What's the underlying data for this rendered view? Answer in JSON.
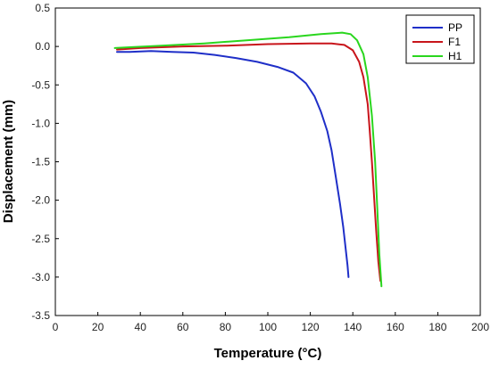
{
  "chart_data": {
    "type": "line",
    "title": "",
    "xlabel": "Temperature (°C)",
    "ylabel": "Displacement (mm)",
    "xlim": [
      0,
      200
    ],
    "ylim": [
      -3.5,
      0.5
    ],
    "x_ticks": [
      0,
      20,
      40,
      60,
      80,
      100,
      120,
      140,
      160,
      180,
      200
    ],
    "y_ticks": [
      0.5,
      0.0,
      -0.5,
      -1.0,
      -1.5,
      -2.0,
      -2.5,
      -3.0,
      -3.5
    ],
    "x_tick_labels": [
      "0",
      "20",
      "40",
      "60",
      "80",
      "100",
      "120",
      "140",
      "160",
      "180",
      "200"
    ],
    "y_tick_labels": [
      "0.5",
      "0.0",
      "-0.5",
      "-1.0",
      "-1.5",
      "-2.0",
      "-2.5",
      "-3.0",
      "-3.5"
    ],
    "grid": false,
    "legend_position": "top-right",
    "series": [
      {
        "name": "PP",
        "color": "#1f2fc8",
        "x": [
          29,
          35,
          45,
          55,
          65,
          75,
          85,
          95,
          105,
          112,
          118,
          122,
          125,
          128,
          130,
          132,
          134,
          135.5,
          136.5,
          137.5,
          138
        ],
        "y": [
          -0.07,
          -0.07,
          -0.06,
          -0.07,
          -0.08,
          -0.11,
          -0.15,
          -0.2,
          -0.27,
          -0.34,
          -0.48,
          -0.65,
          -0.85,
          -1.1,
          -1.35,
          -1.7,
          -2.05,
          -2.35,
          -2.6,
          -2.85,
          -3.0
        ]
      },
      {
        "name": "F1",
        "color": "#c8151b",
        "x": [
          29,
          40,
          60,
          80,
          100,
          120,
          130,
          136,
          140,
          143,
          145,
          147,
          148,
          149,
          150,
          151,
          152,
          153
        ],
        "y": [
          -0.04,
          -0.02,
          0.0,
          0.01,
          0.03,
          0.04,
          0.04,
          0.02,
          -0.05,
          -0.2,
          -0.4,
          -0.75,
          -1.1,
          -1.5,
          -1.95,
          -2.4,
          -2.8,
          -3.05
        ]
      },
      {
        "name": "H1",
        "color": "#2ad61e",
        "x": [
          28,
          35,
          50,
          70,
          90,
          110,
          125,
          135,
          139,
          142,
          145,
          147,
          149,
          150.5,
          151.5,
          152.5,
          153.5
        ],
        "y": [
          -0.02,
          -0.01,
          0.01,
          0.04,
          0.08,
          0.12,
          0.16,
          0.18,
          0.16,
          0.08,
          -0.1,
          -0.4,
          -0.9,
          -1.5,
          -2.1,
          -2.7,
          -3.12
        ]
      }
    ]
  }
}
